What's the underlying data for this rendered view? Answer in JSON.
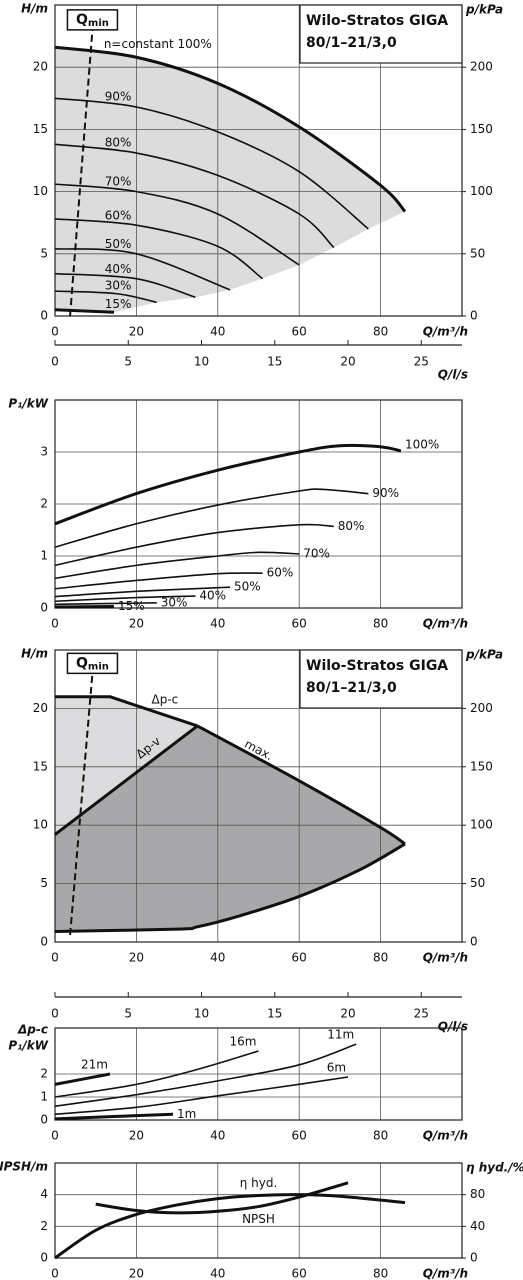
{
  "chart_data": [
    {
      "type": "line",
      "title": [
        "Wilo-Stratos GIGA",
        "80/1–21/3,0"
      ],
      "ylabel": "H/m",
      "y2label": "p/kPa",
      "xlabel": "Q/m³/h",
      "xlim": [
        0,
        100
      ],
      "xticks": [
        0,
        20,
        40,
        60,
        80
      ],
      "ylim": [
        0,
        25
      ],
      "yticks": [
        0,
        5,
        10,
        15,
        20
      ],
      "y2lim": [
        0,
        250
      ],
      "y2ticks": [
        0,
        50,
        100,
        150,
        200
      ],
      "grid": true,
      "color": "#111111",
      "line_width": 1.6,
      "fill": "#dcdcdc",
      "qmin": {
        "label": "Q",
        "sub": "min",
        "x": [
          3.7,
          9.2
        ],
        "y": [
          0,
          23
        ]
      },
      "series": [
        {
          "name": "n=constant 100%",
          "line_width": 3,
          "x": [
            0,
            20,
            40,
            60,
            80,
            86
          ],
          "values": [
            21.6,
            20.8,
            18.7,
            15.2,
            10.5,
            8.4
          ]
        },
        {
          "name": "90%",
          "x": [
            0,
            20,
            40,
            60,
            77
          ],
          "values": [
            17.5,
            16.8,
            14.8,
            11.6,
            7.0
          ]
        },
        {
          "name": "80%",
          "x": [
            0,
            20,
            40,
            60,
            68.5
          ],
          "values": [
            13.8,
            13.1,
            11.3,
            8.2,
            5.5
          ]
        },
        {
          "name": "70%",
          "x": [
            0,
            20,
            40,
            60
          ],
          "values": [
            10.6,
            10.0,
            8.2,
            4.1
          ]
        },
        {
          "name": "60%",
          "x": [
            0,
            20,
            40,
            51
          ],
          "values": [
            7.8,
            7.3,
            5.6,
            3.0
          ]
        },
        {
          "name": "50%",
          "x": [
            0,
            20,
            43
          ],
          "values": [
            5.4,
            5.0,
            2.1
          ]
        },
        {
          "name": "40%",
          "x": [
            0,
            20,
            34.5
          ],
          "values": [
            3.4,
            3.0,
            1.5
          ]
        },
        {
          "name": "30%",
          "x": [
            0,
            15,
            25
          ],
          "values": [
            2.0,
            1.8,
            1.1
          ]
        },
        {
          "name": "15%",
          "line_width": 3,
          "x": [
            0,
            14.5
          ],
          "values": [
            0.5,
            0.3
          ]
        }
      ]
    },
    {
      "type": "axis",
      "xlabel": "Q/l/s",
      "xlim": [
        0,
        27.78
      ],
      "xticks": [
        0,
        5,
        10,
        15,
        20,
        25
      ]
    },
    {
      "type": "line",
      "ylabel": "P₁/kW",
      "xlabel": "Q/m³/h",
      "xlim": [
        0,
        100
      ],
      "xticks": [
        0,
        20,
        40,
        60,
        80
      ],
      "ylim": [
        0,
        4
      ],
      "yticks": [
        0,
        1,
        2,
        3
      ],
      "grid": true,
      "color": "#111111",
      "line_width": 1.6,
      "series": [
        {
          "name": "100%",
          "line_width": 3,
          "x": [
            0,
            20,
            40,
            60,
            70,
            80,
            85
          ],
          "values": [
            1.62,
            2.2,
            2.65,
            3.0,
            3.12,
            3.1,
            3.02
          ]
        },
        {
          "name": "90%",
          "x": [
            0,
            20,
            40,
            60,
            66,
            77
          ],
          "values": [
            1.17,
            1.62,
            1.98,
            2.25,
            2.28,
            2.2
          ]
        },
        {
          "name": "80%",
          "x": [
            0,
            20,
            40,
            60,
            68.5
          ],
          "values": [
            0.82,
            1.17,
            1.45,
            1.6,
            1.57
          ]
        },
        {
          "name": "70%",
          "x": [
            0,
            20,
            40,
            50,
            60
          ],
          "values": [
            0.57,
            0.82,
            1.0,
            1.07,
            1.04
          ]
        },
        {
          "name": "60%",
          "x": [
            0,
            20,
            40,
            51
          ],
          "values": [
            0.37,
            0.53,
            0.66,
            0.67
          ]
        },
        {
          "name": "50%",
          "x": [
            0,
            20,
            43
          ],
          "values": [
            0.22,
            0.32,
            0.4
          ]
        },
        {
          "name": "40%",
          "x": [
            0,
            20,
            34.5
          ],
          "values": [
            0.13,
            0.2,
            0.23
          ]
        },
        {
          "name": "30%",
          "x": [
            0,
            25
          ],
          "values": [
            0.07,
            0.1
          ]
        },
        {
          "name": "15%",
          "line_width": 3,
          "x": [
            0,
            14.5
          ],
          "values": [
            0.02,
            0.03
          ]
        }
      ]
    },
    {
      "type": "line",
      "title": [
        "Wilo-Stratos GIGA",
        "80/1–21/3,0"
      ],
      "ylabel": "H/m",
      "y2label": "p/kPa",
      "xlabel": "Q/m³/h",
      "xlim": [
        0,
        100
      ],
      "xticks": [
        0,
        20,
        40,
        60,
        80
      ],
      "ylim": [
        0,
        25
      ],
      "yticks": [
        0,
        5,
        10,
        15,
        20
      ],
      "y2lim": [
        0,
        250
      ],
      "y2ticks": [
        0,
        50,
        100,
        150,
        200
      ],
      "grid": true,
      "color": "#111111",
      "line_width": 3,
      "fills": [
        "#dcdcde",
        "#a8a8ab"
      ],
      "qmin": {
        "label": "Q",
        "sub": "min",
        "x": [
          3.7,
          9.2
        ],
        "y": [
          0.6,
          23
        ]
      },
      "series": [
        {
          "name": "Δp-c",
          "smooth": false,
          "x": [
            0,
            13.5,
            35
          ],
          "values": [
            21,
            21,
            18.5
          ]
        },
        {
          "name": "Δp-v",
          "smooth": false,
          "x": [
            0,
            35
          ],
          "values": [
            9.2,
            18.5
          ]
        },
        {
          "name": "max.",
          "x": [
            35,
            60,
            80,
            86
          ],
          "values": [
            18.5,
            13.8,
            9.8,
            8.4
          ]
        },
        {
          "x": [
            86,
            75,
            60,
            45,
            35,
            30,
            0
          ],
          "values": [
            8.4,
            6.2,
            3.9,
            2.2,
            1.3,
            1.1,
            0.9
          ]
        }
      ]
    },
    {
      "type": "axis",
      "xlabel": "Q/l/s",
      "xlim": [
        0,
        27.78
      ],
      "xticks": [
        0,
        5,
        10,
        15,
        20,
        25
      ]
    },
    {
      "type": "line",
      "ylabel": [
        "Δp-c",
        "P₁/kW"
      ],
      "xlabel": "Q/m³/h",
      "xlim": [
        0,
        100
      ],
      "xticks": [
        0,
        20,
        40,
        60,
        80
      ],
      "ylim": [
        0,
        4
      ],
      "yticks": [
        0,
        1,
        2
      ],
      "grid": true,
      "color": "#111111",
      "line_width": 1.6,
      "series": [
        {
          "name": "21m",
          "line_width": 3,
          "x": [
            0,
            13.5
          ],
          "values": [
            1.55,
            2.0
          ]
        },
        {
          "name": "16m",
          "x": [
            0,
            20,
            35,
            50
          ],
          "values": [
            1.0,
            1.55,
            2.2,
            3.0
          ]
        },
        {
          "name": "11m",
          "x": [
            0,
            20,
            40,
            60,
            74
          ],
          "values": [
            0.6,
            1.1,
            1.7,
            2.4,
            3.3
          ]
        },
        {
          "name": "6m",
          "x": [
            0,
            20,
            40,
            60,
            72
          ],
          "values": [
            0.25,
            0.55,
            1.05,
            1.55,
            1.87
          ]
        },
        {
          "name": "1m",
          "line_width": 3,
          "x": [
            0,
            29
          ],
          "values": [
            0.05,
            0.25
          ]
        }
      ]
    },
    {
      "type": "line",
      "ylabel": "NPSH/m",
      "y2label": "η hyd./%",
      "xlabel": "Q/m³/h",
      "xlim": [
        0,
        100
      ],
      "xticks": [
        0,
        20,
        40,
        60,
        80
      ],
      "ylim": [
        0,
        6
      ],
      "yticks": [
        0,
        2,
        4
      ],
      "y2lim": [
        0,
        120
      ],
      "y2ticks": [
        0,
        40,
        80
      ],
      "grid": true,
      "color": "#111111",
      "line_width": 3,
      "series": [
        {
          "name": "NPSH",
          "x": [
            10,
            20,
            30,
            40,
            50,
            60,
            72
          ],
          "values": [
            3.4,
            3.0,
            2.85,
            2.95,
            3.25,
            3.85,
            4.75
          ]
        },
        {
          "name": "η hyd.",
          "axis": "y2",
          "x": [
            0,
            10,
            20,
            30,
            40,
            50,
            60,
            70,
            86
          ],
          "values": [
            0,
            35,
            55,
            67,
            75,
            79,
            80,
            78,
            70
          ]
        }
      ]
    }
  ]
}
